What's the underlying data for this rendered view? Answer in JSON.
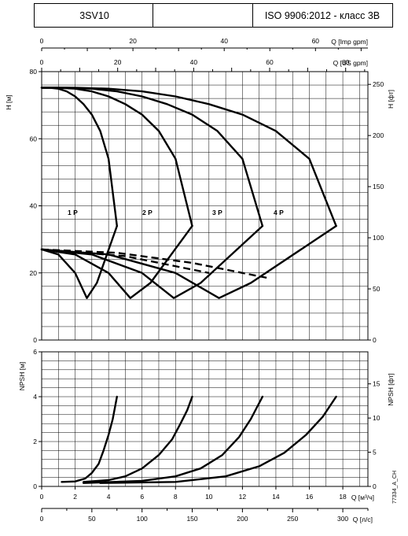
{
  "header": {
    "model": "3SV10",
    "standard": "ISO 9906:2012 - класс 3B"
  },
  "code": "77334_A_CH",
  "chart_data": [
    {
      "type": "line",
      "panel": "head",
      "x_unit_label": "Q [м³/ч]",
      "xlim": [
        0,
        19.5
      ],
      "ylabel": "H [м]",
      "ylim": [
        0,
        80
      ],
      "yticks": [
        0,
        20,
        40,
        60,
        80
      ],
      "ylabel_right": "H [фт]",
      "yticks_right": [
        0,
        50,
        100,
        150,
        200,
        250
      ],
      "top_axis_imp": {
        "label": "Q [Imp gpm]",
        "ticks": [
          0,
          20,
          40,
          60
        ]
      },
      "top_axis_us": {
        "label": "Q [US gpm]",
        "ticks": [
          0,
          20,
          40,
          60,
          80
        ]
      },
      "grid": true,
      "stage_labels": [
        "1 P",
        "2 P",
        "3 P",
        "4 P"
      ],
      "series": [
        {
          "kind": "head",
          "points": [
            [
              0,
              75.2
            ],
            [
              0.5,
              75.2
            ],
            [
              1,
              74.9
            ],
            [
              1.5,
              74.1
            ],
            [
              2,
              72.6
            ],
            [
              2.5,
              70.3
            ],
            [
              3,
              67.2
            ],
            [
              3.5,
              62.3
            ],
            [
              4,
              54
            ],
            [
              4.5,
              34
            ]
          ]
        },
        {
          "kind": "head",
          "points": [
            [
              0,
              75.2
            ],
            [
              1,
              75.2
            ],
            [
              2,
              74.9
            ],
            [
              3,
              74.1
            ],
            [
              4,
              72.6
            ],
            [
              5,
              70.3
            ],
            [
              6,
              67.2
            ],
            [
              7,
              62.3
            ],
            [
              8,
              54
            ],
            [
              9,
              34
            ]
          ]
        },
        {
          "kind": "head",
          "points": [
            [
              0,
              75.2
            ],
            [
              1.5,
              75.2
            ],
            [
              3,
              74.9
            ],
            [
              4.5,
              74.1
            ],
            [
              6,
              72.6
            ],
            [
              7.5,
              70.3
            ],
            [
              9,
              67.2
            ],
            [
              10.5,
              62.3
            ],
            [
              12,
              54
            ],
            [
              13.2,
              34
            ]
          ]
        },
        {
          "kind": "head",
          "points": [
            [
              0,
              75.2
            ],
            [
              2,
              75.2
            ],
            [
              4,
              74.9
            ],
            [
              6,
              74.1
            ],
            [
              8,
              72.6
            ],
            [
              10,
              70.3
            ],
            [
              12,
              67.2
            ],
            [
              14,
              62.3
            ],
            [
              16,
              54
            ],
            [
              17.6,
              34
            ]
          ]
        },
        {
          "kind": "efficiency",
          "points": [
            [
              0,
              27
            ],
            [
              1,
              25.5
            ],
            [
              2,
              20
            ],
            [
              2.7,
              12.5
            ],
            [
              3.3,
              17
            ],
            [
              4.5,
              34
            ]
          ]
        },
        {
          "kind": "efficiency",
          "points": [
            [
              0,
              27
            ],
            [
              2,
              25.5
            ],
            [
              4,
              20
            ],
            [
              5.3,
              12.5
            ],
            [
              6.5,
              17
            ],
            [
              9,
              34
            ]
          ]
        },
        {
          "kind": "efficiency",
          "points": [
            [
              0,
              27
            ],
            [
              3,
              25.5
            ],
            [
              6,
              20
            ],
            [
              7.9,
              12.5
            ],
            [
              9.5,
              17
            ],
            [
              13.2,
              34
            ]
          ]
        },
        {
          "kind": "efficiency",
          "points": [
            [
              0,
              27
            ],
            [
              4,
              25.5
            ],
            [
              8,
              20
            ],
            [
              10.6,
              12.5
            ],
            [
              12.5,
              17
            ],
            [
              17.6,
              34
            ]
          ]
        },
        {
          "kind": "dashed",
          "points": [
            [
              0,
              27
            ],
            [
              4.5,
              26
            ],
            [
              9,
              23
            ],
            [
              13.5,
              18.5
            ]
          ]
        },
        {
          "kind": "dashed",
          "points": [
            [
              0,
              27
            ],
            [
              5,
              25
            ],
            [
              10,
              20
            ]
          ]
        }
      ]
    },
    {
      "type": "line",
      "panel": "npsh",
      "ylabel": "NPSH [м]",
      "ylim": [
        0,
        6
      ],
      "yticks": [
        0,
        2,
        4,
        6
      ],
      "ylabel_right": "NPSH [фт]",
      "yticks_right": [
        0,
        5,
        10,
        15
      ],
      "xlabel": "Q [м³/ч]",
      "xticks": [
        0,
        2,
        4,
        6,
        8,
        10,
        12,
        14,
        16,
        18
      ],
      "bottom_axis_ls": {
        "label": "Q [л/с]",
        "ticks": [
          0,
          50,
          100,
          150,
          200,
          250,
          300
        ]
      },
      "xlim": [
        0,
        19.5
      ],
      "grid": true,
      "series": [
        {
          "points": [
            [
              1.2,
              0.2
            ],
            [
              2,
              0.22
            ],
            [
              2.6,
              0.35
            ],
            [
              3,
              0.6
            ],
            [
              3.4,
              1.0
            ],
            [
              3.7,
              1.6
            ],
            [
              4,
              2.3
            ],
            [
              4.25,
              3.0
            ],
            [
              4.5,
              4.0
            ]
          ]
        },
        {
          "points": [
            [
              2.5,
              0.2
            ],
            [
              4,
              0.28
            ],
            [
              5,
              0.45
            ],
            [
              6,
              0.8
            ],
            [
              7,
              1.4
            ],
            [
              7.8,
              2.1
            ],
            [
              8.3,
              2.8
            ],
            [
              8.7,
              3.4
            ],
            [
              9,
              4.0
            ]
          ]
        },
        {
          "points": [
            [
              2.5,
              0.15
            ],
            [
              6,
              0.25
            ],
            [
              8,
              0.45
            ],
            [
              9.5,
              0.8
            ],
            [
              10.8,
              1.4
            ],
            [
              11.8,
              2.2
            ],
            [
              12.5,
              3.0
            ],
            [
              13.2,
              4.0
            ]
          ]
        },
        {
          "points": [
            [
              3.5,
              0.15
            ],
            [
              8,
              0.2
            ],
            [
              11,
              0.45
            ],
            [
              13,
              0.9
            ],
            [
              14.5,
              1.5
            ],
            [
              15.8,
              2.3
            ],
            [
              16.8,
              3.1
            ],
            [
              17.6,
              4.0
            ]
          ]
        }
      ]
    }
  ]
}
